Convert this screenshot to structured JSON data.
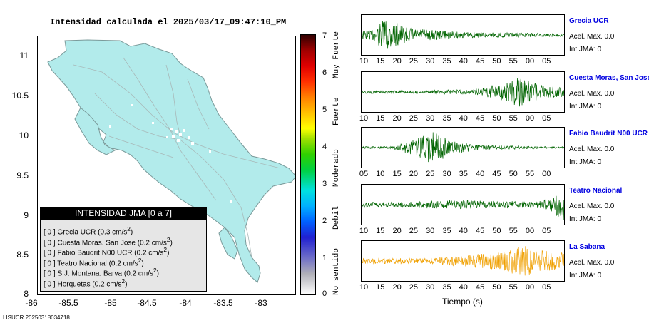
{
  "map": {
    "title": "Intensidad calculada el 2025/03/17_09:47:10_PM",
    "y_ticks": [
      "11",
      "10.5",
      "10",
      "9.5",
      "9",
      "8.5",
      "8"
    ],
    "x_ticks": [
      "-86",
      "-85.5",
      "-85",
      "-84.5",
      "-84",
      "-83.5",
      "-83"
    ],
    "land_color": "#b2ebeb"
  },
  "legend": {
    "title": "INTENSIDAD JMA [0 a 7]",
    "items": [
      {
        "level": "[ 0 ]",
        "name": "Grecia UCR",
        "value": "(0.3 cm/s",
        "sup": "2",
        "close": ")"
      },
      {
        "level": "[ 0 ]",
        "name": "Cuesta Moras. San Jose",
        "value": "(0.2 cm/s",
        "sup": "2",
        "close": ")"
      },
      {
        "level": "[ 0 ]",
        "name": "Fabio Baudrit N00 UCR",
        "value": "(0.2 cm/s",
        "sup": "2",
        "close": ")"
      },
      {
        "level": "[ 0 ]",
        "name": "Teatro Nacional",
        "value": "(0.2 cm/s",
        "sup": "2",
        "close": ")"
      },
      {
        "level": "[ 0 ]",
        "name": "S.J. Montana. Barva",
        "value": "(0.2 cm/s",
        "sup": "2",
        "close": ")"
      },
      {
        "level": "[ 0 ]",
        "name": "Horquetas",
        "value": "(0.2 cm/s",
        "sup": "2",
        "close": ")"
      }
    ]
  },
  "colorbar": {
    "ticks": [
      "7",
      "6",
      "5",
      "4",
      "3",
      "2",
      "1",
      "0"
    ],
    "words": [
      "Muy Fuerte",
      "Fuerte",
      "Moderado",
      "Debil",
      "No sentido"
    ]
  },
  "stations": [
    {
      "name": "Grecia UCR",
      "acel": "Acel. Max. 0.0",
      "jma": "Int JMA: 0",
      "color": "#006400",
      "ticks": [
        "10",
        "15",
        "20",
        "25",
        "30",
        "35",
        "40",
        "45",
        "50",
        "55",
        "00",
        "05"
      ],
      "env": [
        [
          0.05,
          0.25
        ],
        [
          0.12,
          0.95
        ],
        [
          0.22,
          0.4
        ],
        [
          0.5,
          0.15
        ],
        [
          1,
          0.08
        ]
      ]
    },
    {
      "name": "Cuesta Moras, San Jose",
      "acel": "Acel. Max. 0.0",
      "jma": "Int JMA: 0",
      "color": "#006400",
      "ticks": [
        "10",
        "15",
        "20",
        "25",
        "30",
        "35",
        "40",
        "45",
        "50",
        "55",
        "00",
        "05"
      ],
      "env": [
        [
          0.3,
          0.08
        ],
        [
          0.55,
          0.15
        ],
        [
          0.7,
          0.5
        ],
        [
          0.78,
          0.8
        ],
        [
          0.9,
          0.35
        ],
        [
          1,
          0.25
        ]
      ]
    },
    {
      "name": "Fabio Baudrit N00 UCR",
      "acel": "Acel. Max. 0.0",
      "jma": "Int JMA: 0",
      "color": "#006400",
      "ticks": [
        "05",
        "10",
        "15",
        "20",
        "25",
        "30",
        "35",
        "40",
        "45",
        "50",
        "55",
        "00"
      ],
      "env": [
        [
          0.15,
          0.06
        ],
        [
          0.22,
          0.3
        ],
        [
          0.35,
          0.9
        ],
        [
          0.45,
          0.35
        ],
        [
          0.6,
          0.12
        ],
        [
          1,
          0.05
        ]
      ]
    },
    {
      "name": "Teatro Nacional",
      "acel": "Acel. Max. 0.0",
      "jma": "Int JMA: 0",
      "color": "#006400",
      "ticks": [
        "10",
        "15",
        "20",
        "25",
        "30",
        "35",
        "40",
        "45",
        "50",
        "55",
        "00",
        "05"
      ],
      "env": [
        [
          0.2,
          0.15
        ],
        [
          0.45,
          0.25
        ],
        [
          0.65,
          0.2
        ],
        [
          0.85,
          0.18
        ],
        [
          0.93,
          0.3
        ],
        [
          1,
          0.9
        ]
      ]
    },
    {
      "name": "La Sabana",
      "acel": "Acel. Max. 0.0",
      "jma": "Int JMA: 0",
      "color": "#f0a000",
      "ticks": [
        "10",
        "15",
        "20",
        "25",
        "30",
        "35",
        "40",
        "45",
        "50",
        "55",
        "00",
        "05"
      ],
      "env": [
        [
          0.3,
          0.15
        ],
        [
          0.5,
          0.3
        ],
        [
          0.7,
          0.5
        ],
        [
          0.8,
          0.9
        ],
        [
          0.9,
          0.55
        ],
        [
          1,
          0.45
        ]
      ]
    }
  ],
  "xlabel": "Tiempo (s)",
  "footer": "LISUCR 20250318034718"
}
